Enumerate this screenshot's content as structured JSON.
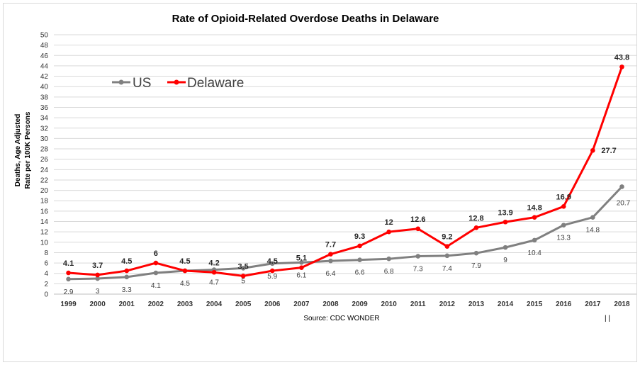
{
  "chart_data": {
    "type": "line",
    "title": "Rate of Opioid-Related Overdose Deaths in Delaware",
    "ylabel_line1": "Deaths, Age Adjusted",
    "ylabel_line2": "Rate per 100K Persons",
    "xlabel": "",
    "source": "Source: CDC WONDER",
    "mark": "| |",
    "ylim": [
      0,
      50
    ],
    "ytick_step": 2,
    "grid": true,
    "legend_position": "top-left",
    "categories": [
      "1999",
      "2000",
      "2001",
      "2002",
      "2003",
      "2004",
      "2005",
      "2006",
      "2007",
      "2008",
      "2009",
      "2010",
      "2011",
      "2012",
      "2013",
      "2014",
      "2015",
      "2016",
      "2017",
      "2018"
    ],
    "series": [
      {
        "name": "US",
        "color": "#808080",
        "values": [
          2.9,
          3,
          3.3,
          4.1,
          4.5,
          4.7,
          5,
          5.9,
          6.1,
          6.4,
          6.6,
          6.8,
          7.3,
          7.4,
          7.9,
          9,
          10.4,
          13.3,
          14.8,
          20.7
        ],
        "labels": [
          "2.9",
          "3",
          "3.3",
          "4.1",
          "4.5",
          "4.7",
          "5",
          "5.9",
          "6.1",
          "6.4",
          "6.6",
          "6.8",
          "7.3",
          "7.4",
          "7.9",
          "9",
          "10.4",
          "13.3",
          "14.8",
          "20.7"
        ]
      },
      {
        "name": "Delaware",
        "color": "#ff0000",
        "values": [
          4.1,
          3.7,
          4.5,
          6,
          4.5,
          4.2,
          3.5,
          4.5,
          5.1,
          7.7,
          9.3,
          12,
          12.6,
          9.2,
          12.8,
          13.9,
          14.8,
          16.9,
          27.7,
          43.8
        ],
        "labels": [
          "4.1",
          "3.7",
          "4.5",
          "6",
          "4.5",
          "4.2",
          "3.5",
          "4.5",
          "5.1",
          "7.7",
          "9.3",
          "12",
          "12.6",
          "9.2",
          "12.8",
          "13.9",
          "14.8",
          "16.9",
          "27.7",
          "43.8"
        ]
      }
    ]
  }
}
